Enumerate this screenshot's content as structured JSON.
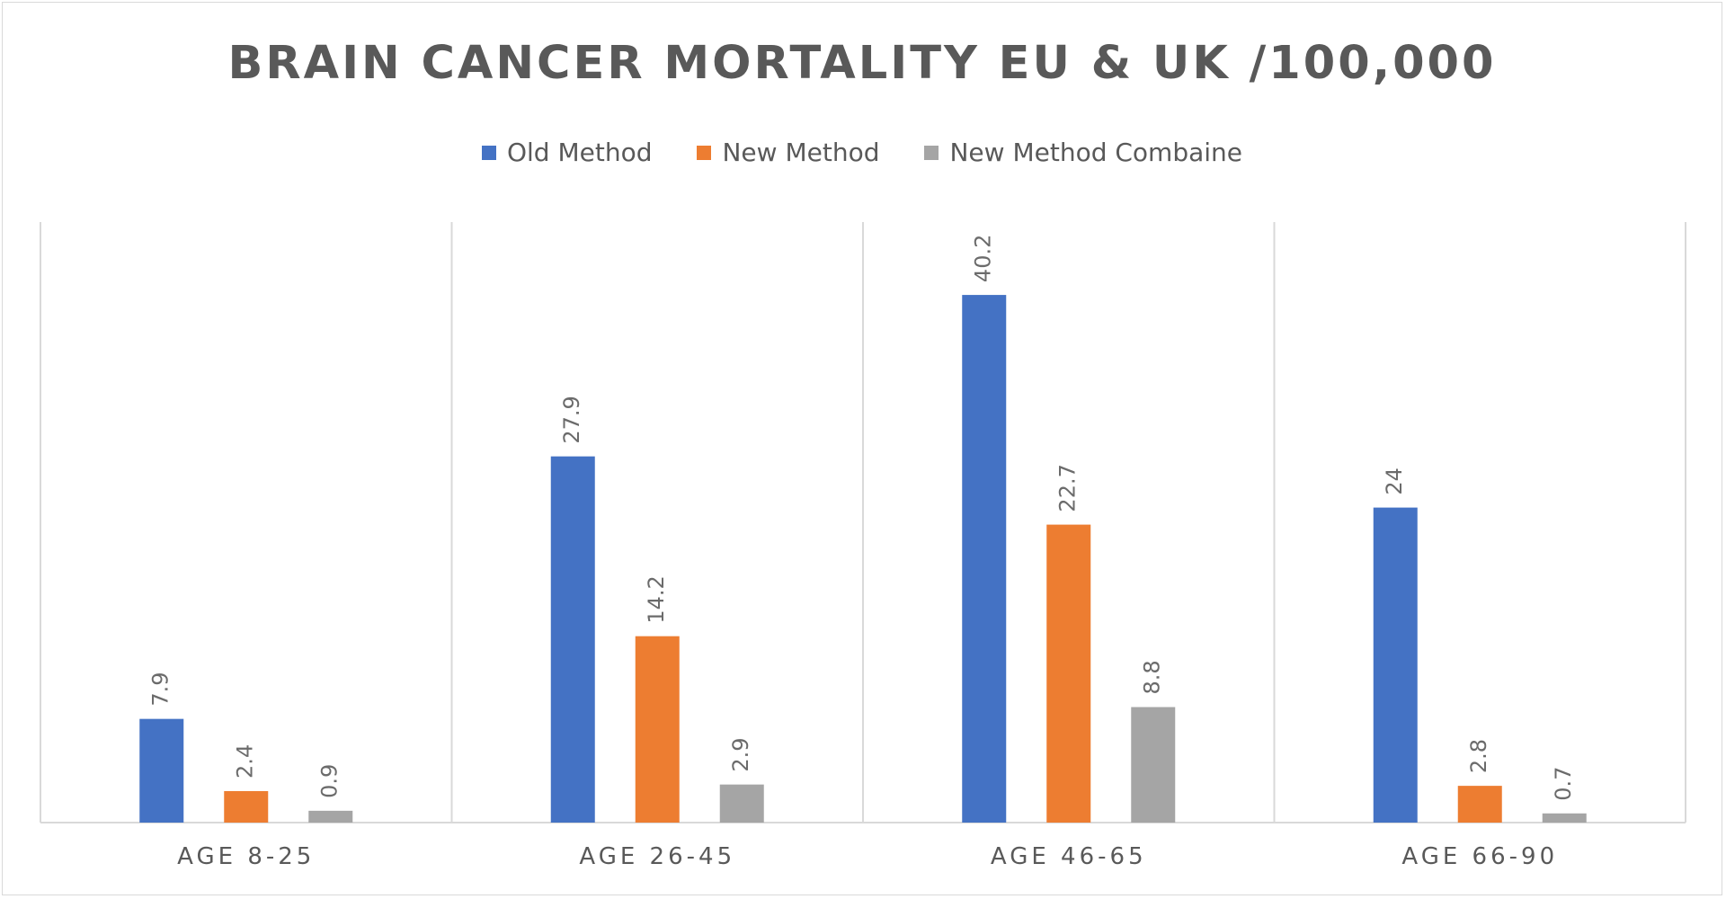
{
  "chart_data": {
    "type": "bar",
    "title": "BRAIN CANCER MORTALITY EU & UK /100,000",
    "xlabel": "",
    "ylabel": "",
    "categories": [
      "AGE 8-25",
      "AGE 26-45",
      "AGE 46-65",
      "AGE 66-90"
    ],
    "series": [
      {
        "name": "Old Method",
        "color": "#4472C4",
        "values": [
          7.9,
          27.9,
          40.2,
          24
        ]
      },
      {
        "name": "New Method",
        "color": "#ED7D31",
        "values": [
          2.4,
          14.2,
          22.7,
          2.8
        ]
      },
      {
        "name": "New Method Combaine",
        "color": "#A5A5A5",
        "values": [
          0.9,
          2.9,
          8.8,
          0.7
        ]
      }
    ],
    "ylim": [
      0,
      45
    ],
    "grid": false,
    "legend_position": "top",
    "data_labels": true,
    "data_label_orientation": "rotated-vertical",
    "category_separators": true
  }
}
